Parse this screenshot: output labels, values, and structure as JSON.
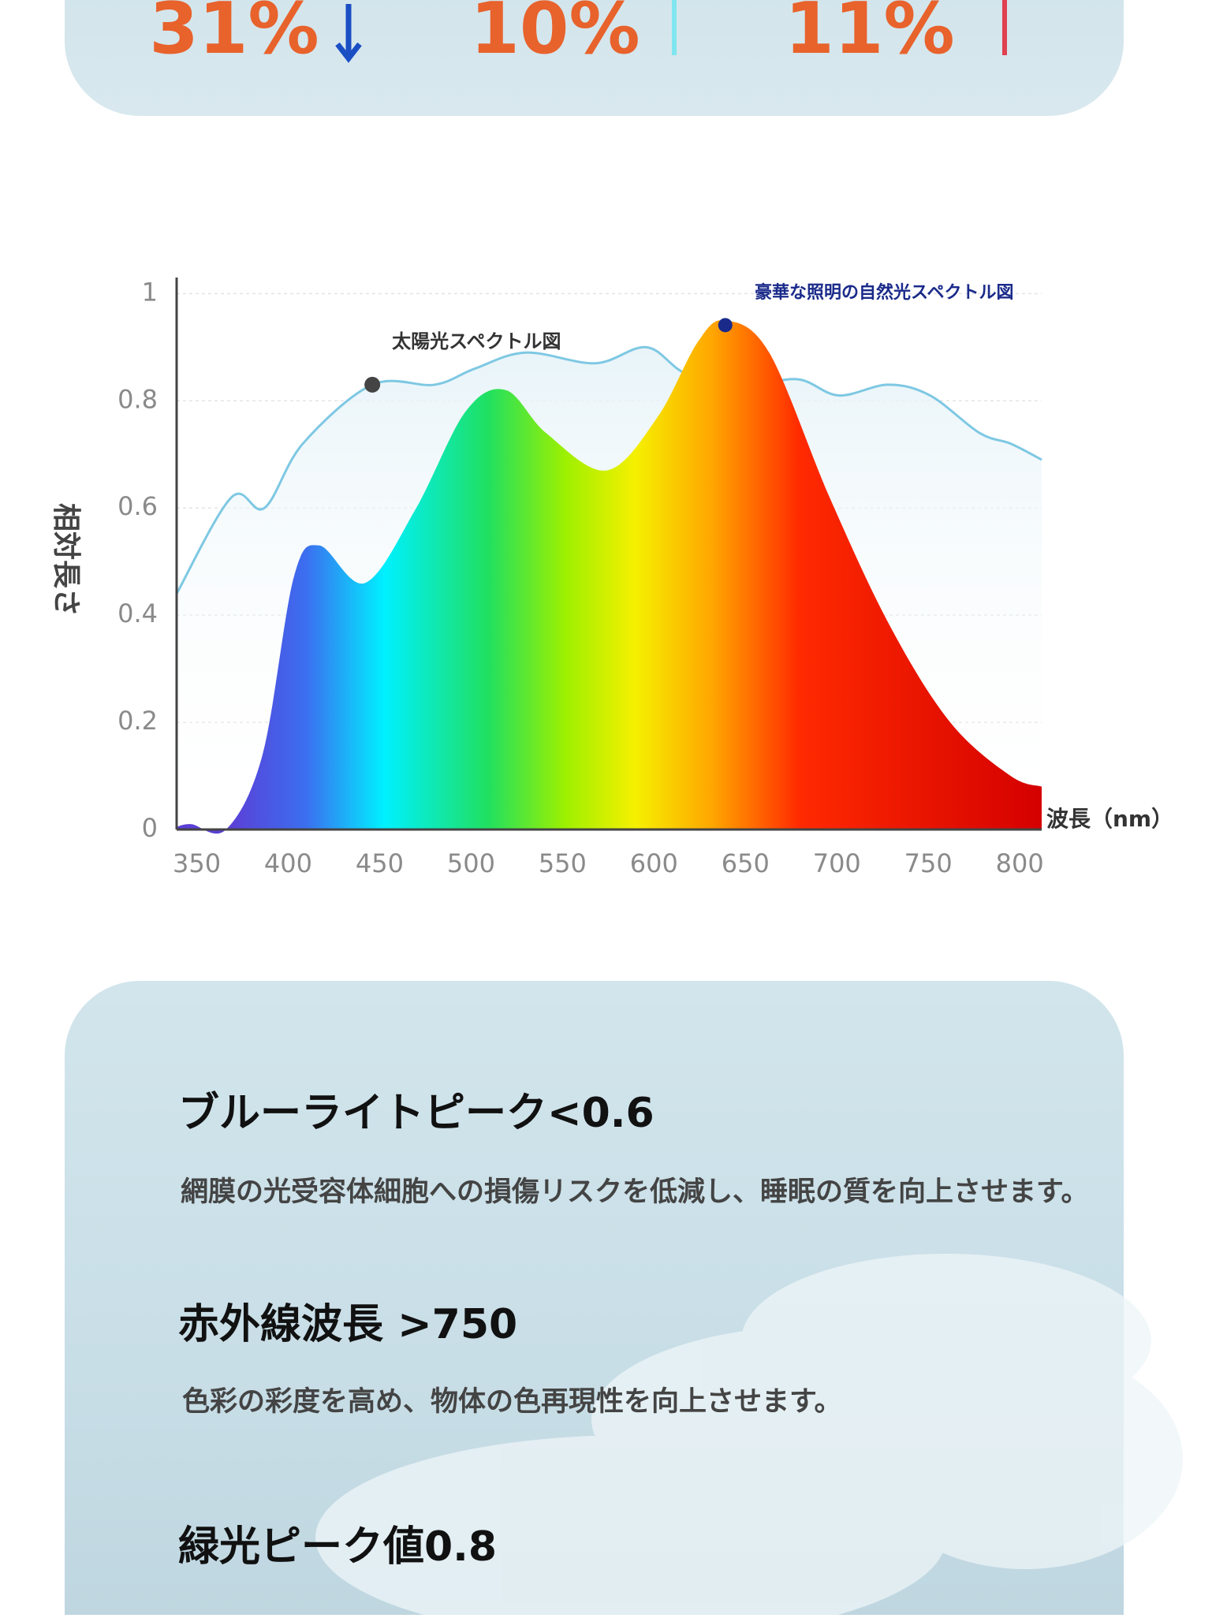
{
  "stats": [
    "31%",
    "10%",
    "11%"
  ],
  "chart_data": {
    "type": "area",
    "y_label": "相対長さ",
    "x_label": "波長（nm）",
    "xlim": [
      339,
      812
    ],
    "xticks": [
      350,
      400,
      450,
      500,
      550,
      600,
      650,
      700,
      750,
      800
    ],
    "ylim": [
      0,
      1.03
    ],
    "yticks": [
      0,
      0.2,
      0.4,
      0.6,
      0.8,
      1
    ],
    "grid": true,
    "series": [
      {
        "name": "太陽光スペクトル図",
        "type": "line",
        "color": "#7ec8e3",
        "x": [
          339,
          369,
          387,
          408,
          446,
          480,
          502,
          530,
          568,
          596,
          618,
          651,
          679,
          701,
          728,
          751,
          778,
          795,
          812
        ],
        "values": [
          0.44,
          0.62,
          0.6,
          0.72,
          0.83,
          0.83,
          0.86,
          0.89,
          0.87,
          0.9,
          0.85,
          0.83,
          0.84,
          0.81,
          0.83,
          0.81,
          0.74,
          0.72,
          0.69
        ]
      },
      {
        "name": "豪華な照明の自然光スペクトル図",
        "type": "area",
        "color": "#1a2a8a",
        "x": [
          339,
          347,
          366,
          386,
          403,
          417,
          442,
          470,
          497,
          519,
          541,
          574,
          602,
          624,
          639,
          663,
          696,
          729,
          762,
          795,
          812
        ],
        "values": [
          0.005,
          0.01,
          0,
          0.14,
          0.47,
          0.53,
          0.46,
          0.6,
          0.78,
          0.82,
          0.74,
          0.67,
          0.77,
          0.91,
          0.95,
          0.89,
          0.62,
          0.38,
          0.2,
          0.1,
          0.08
        ]
      }
    ]
  },
  "features": [
    {
      "title": "ブルーライトピーク<0.6",
      "text": "網膜の光受容体細胞への損傷リスクを低減し、睡眠の質を向上させます。"
    },
    {
      "title": "赤外線波長 >750",
      "text": "色彩の彩度を高め、物体の色再現性を向上させます。"
    },
    {
      "title": "緑光ピーク値0.8"
    }
  ]
}
